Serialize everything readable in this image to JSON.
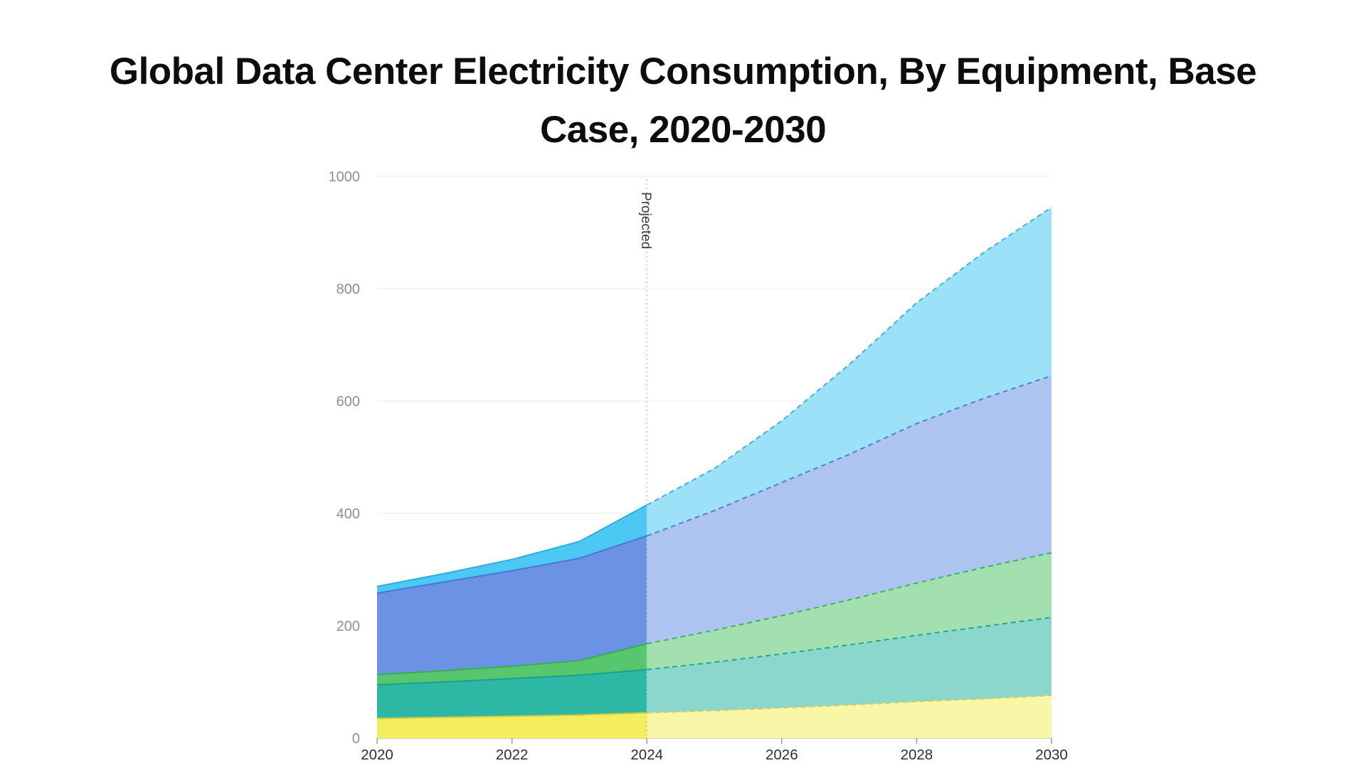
{
  "page": {
    "background": "#ffffff"
  },
  "title_lines": [
    "Global Data Center Electricity Consumption, By Equipment, Base",
    "Case, 2020-2030"
  ],
  "chart_data": {
    "type": "area",
    "stacked": true,
    "title": "Global Data Center Electricity Consumption, By Equipment, Base Case, 2020-2030",
    "x": [
      2020,
      2021,
      2022,
      2023,
      2024,
      2025,
      2026,
      2027,
      2028,
      2029,
      2030
    ],
    "xticks": [
      2020,
      2022,
      2024,
      2026,
      2028,
      2030
    ],
    "ylim": [
      0,
      1000
    ],
    "yticks": [
      0,
      200,
      400,
      600,
      800,
      1000
    ],
    "grid": true,
    "legend_position": "none",
    "projection_start": 2024,
    "annotation": {
      "label": "Projected",
      "x": 2024
    },
    "grid_color": "#e4e4e4",
    "axis_color": "#c0c0c0",
    "tick_label_color": "#8f8f8f",
    "x_label_color": "#2e2e2e",
    "divider_color": "#c2c2c2",
    "annotation_color": "#3a3a3a",
    "projection_overlay_opacity": 0.45,
    "series": [
      {
        "name": "yellow-bottom-band",
        "fill": "#f4ee5f",
        "stroke": "#d8cc41",
        "values": [
          35,
          37,
          39,
          41,
          45,
          49,
          54,
          59,
          65,
          70,
          76
        ]
      },
      {
        "name": "teal-band",
        "fill": "#2db7a5",
        "stroke": "#17a191",
        "values": [
          60,
          63,
          67,
          71,
          77,
          86,
          96,
          107,
          118,
          129,
          139
        ]
      },
      {
        "name": "green-band",
        "fill": "#57c66d",
        "stroke": "#37ae52",
        "values": [
          18,
          20,
          22,
          26,
          46,
          57,
          68,
          80,
          93,
          105,
          115
        ]
      },
      {
        "name": "blue-band",
        "fill": "#6b92e3",
        "stroke": "#4a74d6",
        "values": [
          145,
          158,
          170,
          182,
          192,
          213,
          237,
          259,
          284,
          301,
          315
        ]
      },
      {
        "name": "cyan-band",
        "fill": "#4dc8f4",
        "stroke": "#28aee0",
        "values": [
          12,
          15,
          20,
          30,
          55,
          75,
          110,
          160,
          215,
          260,
          300
        ]
      }
    ]
  }
}
